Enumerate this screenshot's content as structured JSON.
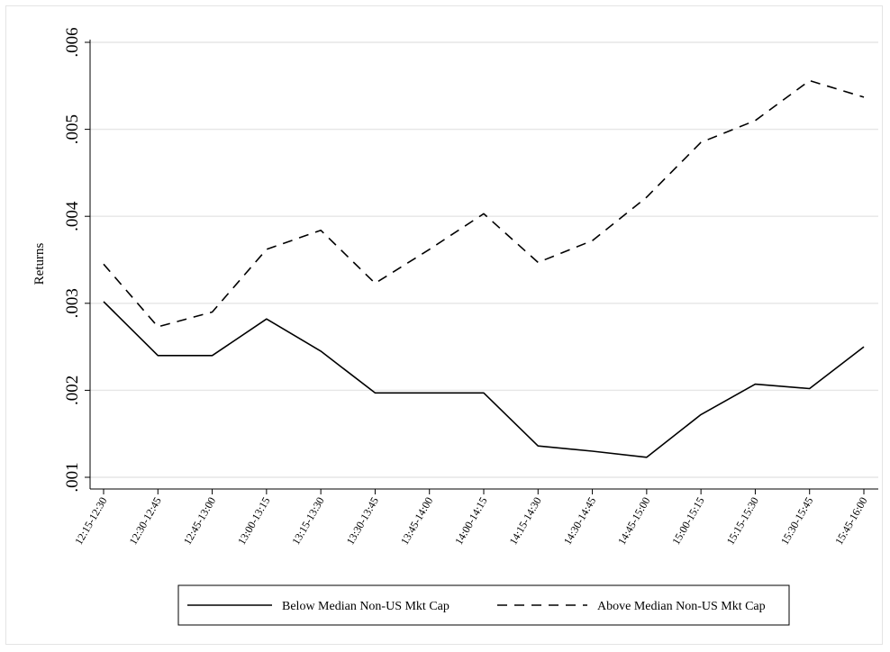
{
  "chart_data": {
    "type": "line",
    "title": "",
    "xlabel": "",
    "ylabel": "Returns",
    "categories": [
      "12:15-12:30",
      "12:30-12:45",
      "12:45-13:00",
      "13:00-13:15",
      "13:15-13:30",
      "13:30-13:45",
      "13:45-14:00",
      "14:00-14:15",
      "14:15-14:30",
      "14:30-14:45",
      "14:45-15:00",
      "15:00-15:15",
      "15:15-15:30",
      "15:30-15:45",
      "15:45-16:00"
    ],
    "ylim": [
      0.001,
      0.006
    ],
    "yticks": [
      0.001,
      0.002,
      0.003,
      0.004,
      0.005,
      0.006
    ],
    "ytick_labels": [
      ".001",
      ".002",
      ".003",
      ".004",
      ".005",
      ".006"
    ],
    "grid": true,
    "legend_position": "bottom",
    "series": [
      {
        "name": "Below Median Non-US Mkt Cap",
        "style": "solid",
        "color": "#000000",
        "values": [
          0.00302,
          0.0024,
          0.0024,
          0.00282,
          0.00245,
          0.00197,
          0.00197,
          0.00197,
          0.00136,
          0.0013,
          0.00123,
          0.00172,
          0.00207,
          0.00202,
          0.0025
        ]
      },
      {
        "name": "Above Median Non-US Mkt Cap",
        "style": "dashed",
        "color": "#000000",
        "values": [
          0.00345,
          0.00273,
          0.0029,
          0.00362,
          0.00384,
          0.00323,
          0.00362,
          0.00403,
          0.00347,
          0.00372,
          0.00422,
          0.00485,
          0.0051,
          0.00556,
          0.00537
        ]
      }
    ]
  }
}
